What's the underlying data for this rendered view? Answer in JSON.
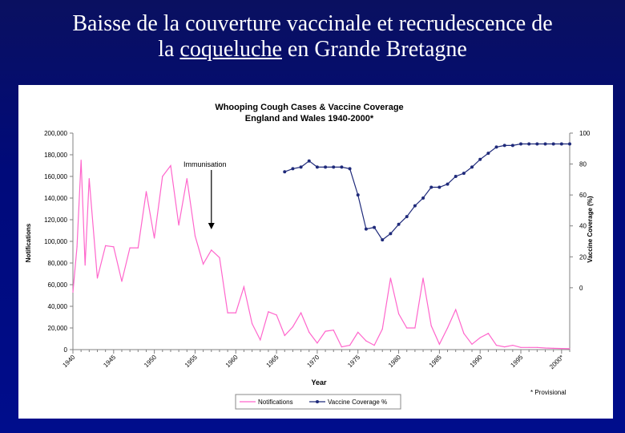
{
  "slide": {
    "title_part1": "Baisse de la couverture vaccinale et recrudescence de",
    "title_part2_prefix": "la ",
    "title_part2_underlined": "coqueluche",
    "title_part2_suffix": " en Grande Bretagne"
  },
  "colors": {
    "background": "#000d8c",
    "notifications": "#ff66cc",
    "vaccine": "#1f2a7a",
    "axis": "#808080"
  },
  "chart_data": {
    "type": "line",
    "title": "Whooping Cough Cases & Vaccine Coverage",
    "subtitle": "England and Wales 1940-2000*",
    "xlabel": "Year",
    "ylabel_left": "Notifications",
    "ylabel_right": "Vaccine Coverage (%)",
    "xlim": [
      1940,
      2001
    ],
    "ylim_left": [
      0,
      200000
    ],
    "ylim_right": [
      -40,
      100
    ],
    "left_ticks": [
      "0",
      "20,000",
      "40,000",
      "60,000",
      "80,000",
      "100,000",
      "120,000",
      "140,000",
      "160,000",
      "180,000",
      "200,000"
    ],
    "right_ticks": [
      "0",
      "20",
      "40",
      "60",
      "80",
      "100"
    ],
    "x_tick_labels": [
      "1940",
      "1945",
      "1950",
      "1955",
      "1960",
      "1965",
      "1970",
      "1975",
      "1980",
      "1985",
      "1990",
      "1995",
      "2000*"
    ],
    "annotation": {
      "text": "Immunisation",
      "year": 1957
    },
    "footnote": "* Provisional",
    "series": [
      {
        "name": "Notifications",
        "axis": "left",
        "x": [
          1940,
          1940.5,
          1941,
          1941.5,
          1942,
          1943,
          1944,
          1945,
          1946,
          1947,
          1948,
          1949,
          1950,
          1951,
          1952,
          1953,
          1954,
          1955,
          1956,
          1957,
          1958,
          1959,
          1960,
          1961,
          1962,
          1963,
          1964,
          1965,
          1966,
          1967,
          1968,
          1969,
          1970,
          1971,
          1972,
          1973,
          1974,
          1975,
          1976,
          1977,
          1978,
          1979,
          1980,
          1981,
          1982,
          1983,
          1984,
          1985,
          1986,
          1987,
          1988,
          1989,
          1990,
          1991,
          1992,
          1993,
          1994,
          1995,
          1996,
          1997,
          1998,
          1999,
          2000,
          2001
        ],
        "y": [
          53000,
          95000,
          175000,
          78000,
          158000,
          66000,
          96000,
          95000,
          63000,
          94000,
          94000,
          146000,
          103000,
          160000,
          170000,
          115000,
          158000,
          105000,
          79000,
          92000,
          85000,
          34000,
          34000,
          58000,
          24000,
          9000,
          35000,
          32000,
          13000,
          21000,
          34000,
          16000,
          6000,
          17000,
          18000,
          2500,
          4000,
          16000,
          8000,
          4000,
          19000,
          66000,
          33000,
          20000,
          20000,
          66000,
          22000,
          5000,
          20000,
          37000,
          15000,
          5000,
          11000,
          15000,
          4000,
          2500,
          4000,
          2000,
          2000,
          2000,
          1500,
          1200,
          1000,
          800
        ]
      },
      {
        "name": "Vaccine Coverage %",
        "axis": "right",
        "x": [
          1966,
          1967,
          1968,
          1969,
          1970,
          1971,
          1972,
          1973,
          1974,
          1975,
          1976,
          1977,
          1978,
          1979,
          1980,
          1981,
          1982,
          1983,
          1984,
          1985,
          1986,
          1987,
          1988,
          1989,
          1990,
          1991,
          1992,
          1993,
          1994,
          1995,
          1996,
          1997,
          1998,
          1999,
          2000,
          2001
        ],
        "y": [
          75,
          77,
          78,
          82,
          78,
          78,
          78,
          78,
          77,
          60,
          38,
          39,
          31,
          35,
          41,
          46,
          53,
          58,
          65,
          65,
          67,
          72,
          74,
          78,
          83,
          87,
          91,
          92,
          92,
          93,
          93,
          93,
          93,
          93,
          93,
          93
        ]
      }
    ],
    "legend": [
      "Notifications",
      "Vaccine Coverage %"
    ]
  }
}
